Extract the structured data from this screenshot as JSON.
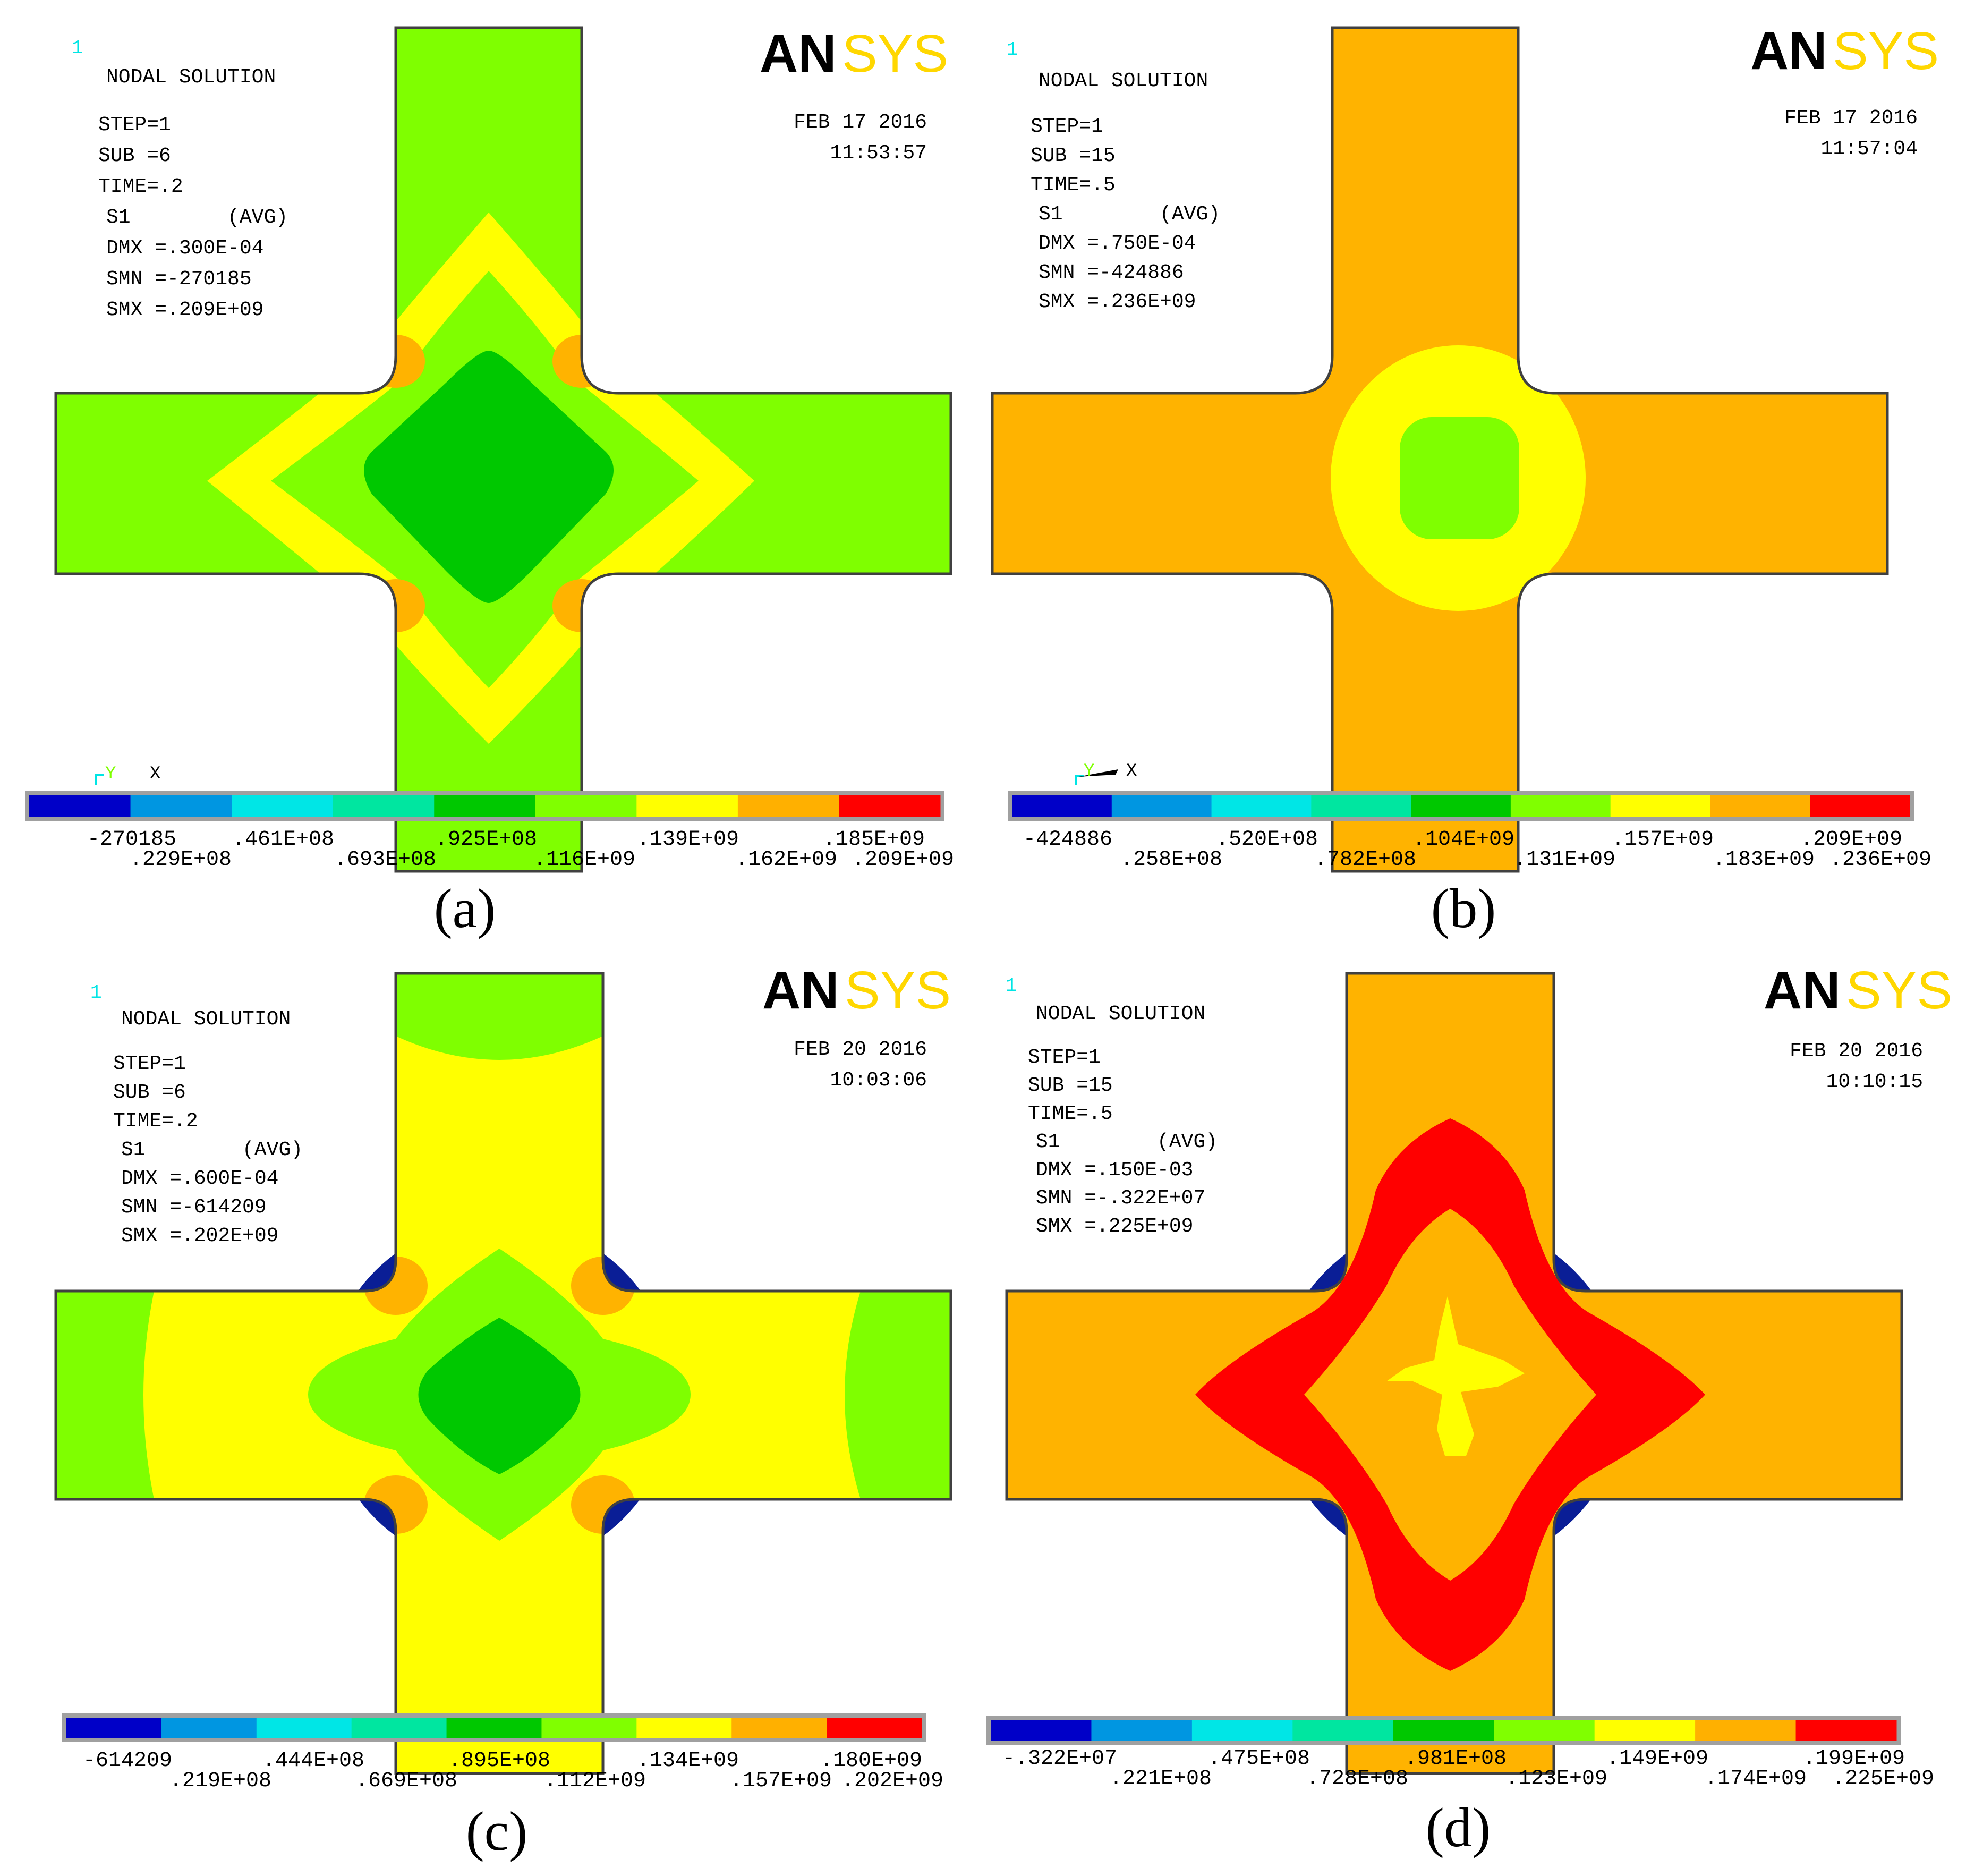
{
  "logo": {
    "part1": "AN",
    "part2": "SYS"
  },
  "colors": {
    "green": "#7FFF00",
    "darkgreen": "#00C800",
    "yellow": "#FFFF00",
    "orange": "#FFB300",
    "red": "#FF0000",
    "navy": "#0A1E96",
    "cyan_label": "#00E5E5",
    "ansys_black": "#000000",
    "ansys_yellow": "#FFD700",
    "outline": "#404040"
  },
  "legend_colors": [
    "#0000C8",
    "#0096E1",
    "#00E6E6",
    "#00E6A0",
    "#00C800",
    "#80FF00",
    "#FFFF00",
    "#FFB000",
    "#FF0000"
  ],
  "panels": [
    {
      "id": "a",
      "caption": "(a)",
      "window_number": "1",
      "title": "NODAL SOLUTION",
      "date": "FEB 17 2016",
      "time": "11:53:57",
      "info": [
        "STEP=1",
        "SUB =6",
        "TIME=.2",
        "S1        (AVG)",
        "DMX =.300E-04",
        "SMN =-270185",
        "SMX =.209E+09"
      ],
      "axis": {
        "y": "Y",
        "x": "X"
      },
      "legend_top": [
        "-270185",
        ".461E+08",
        ".925E+08",
        ".139E+09",
        ".185E+09"
      ],
      "legend_bottom": [
        ".229E+08",
        ".693E+08",
        ".116E+09",
        ".162E+09",
        ".209E+09"
      ]
    },
    {
      "id": "b",
      "caption": "(b)",
      "window_number": "1",
      "title": "NODAL SOLUTION",
      "date": "FEB 17 2016",
      "time": "11:57:04",
      "info": [
        "STEP=1",
        "SUB =15",
        "TIME=.5",
        "S1        (AVG)",
        "DMX =.750E-04",
        "SMN =-424886",
        "SMX =.236E+09"
      ],
      "axis": {
        "y": "Y",
        "x": "X"
      },
      "legend_top": [
        "-424886",
        ".520E+08",
        ".104E+09",
        ".157E+09",
        ".209E+09"
      ],
      "legend_bottom": [
        ".258E+08",
        ".782E+08",
        ".131E+09",
        ".183E+09",
        ".236E+09"
      ]
    },
    {
      "id": "c",
      "caption": "(c)",
      "window_number": "1",
      "title": "NODAL SOLUTION",
      "date": "FEB 20 2016",
      "time": "10:03:06",
      "info": [
        "STEP=1",
        "SUB =6",
        "TIME=.2",
        "S1        (AVG)",
        "DMX =.600E-04",
        "SMN =-614209",
        "SMX =.202E+09"
      ],
      "legend_top": [
        "-614209",
        ".444E+08",
        ".895E+08",
        ".134E+09",
        ".180E+09"
      ],
      "legend_bottom": [
        ".219E+08",
        ".669E+08",
        ".112E+09",
        ".157E+09",
        ".202E+09"
      ]
    },
    {
      "id": "d",
      "caption": "(d)",
      "window_number": "1",
      "title": "NODAL SOLUTION",
      "date": "FEB 20 2016",
      "time": "10:10:15",
      "info": [
        "STEP=1",
        "SUB =15",
        "TIME=.5",
        "S1        (AVG)",
        "DMX =.150E-03",
        "SMN =-.322E+07",
        "SMX =.225E+09"
      ],
      "legend_top": [
        "-.322E+07",
        ".475E+08",
        ".981E+08",
        ".149E+09",
        ".199E+09"
      ],
      "legend_bottom": [
        ".221E+08",
        ".728E+08",
        ".123E+09",
        ".174E+09",
        ".225E+09"
      ]
    }
  ]
}
